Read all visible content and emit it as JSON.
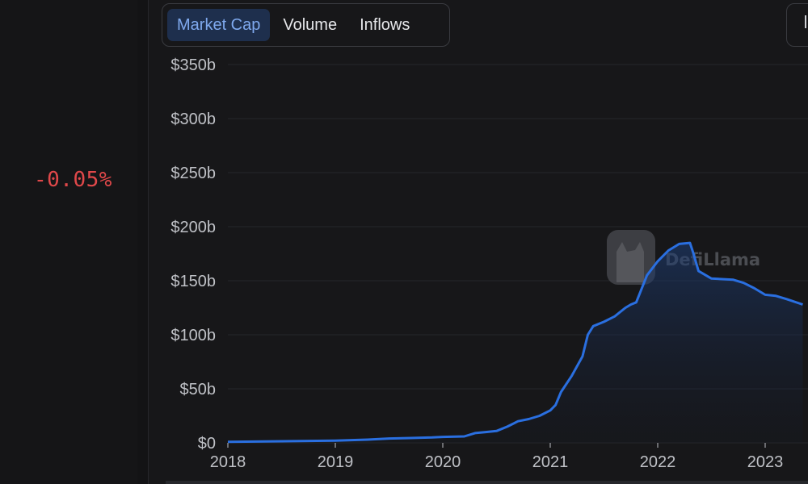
{
  "stats": {
    "change_value": "-0.05%"
  },
  "tabs": [
    {
      "label": "Market Cap",
      "active": true
    },
    {
      "label": "Volume",
      "active": false
    },
    {
      "label": "Inflows",
      "active": false
    }
  ],
  "watermark": {
    "text": "DefiLlama"
  },
  "colors": {
    "line": "#2a6fe0",
    "negative": "#e0484a",
    "active_tab_bg": "#1e2f4d",
    "active_tab_text": "#7fa9ee"
  },
  "chart_data": {
    "type": "area",
    "ylim": [
      0,
      350
    ],
    "y_ticks": [
      0,
      50,
      100,
      150,
      200,
      250,
      300,
      350
    ],
    "y_tick_labels": [
      "$0",
      "$50b",
      "$100b",
      "$150b",
      "$200b",
      "$250b",
      "$300b",
      "$350b"
    ],
    "x_ticks": [
      2018,
      2019,
      2020,
      2021,
      2022,
      2023
    ],
    "x_tick_labels": [
      "2018",
      "2019",
      "2020",
      "2021",
      "2022",
      "2023"
    ],
    "xlim": [
      2018,
      2023.35
    ],
    "grid": true,
    "series": [
      {
        "x": [
          2018.0,
          2018.5,
          2019.0,
          2019.3,
          2019.5,
          2019.7,
          2019.9,
          2020.0,
          2020.2,
          2020.3,
          2020.4,
          2020.5,
          2020.6,
          2020.7,
          2020.8,
          2020.9,
          2021.0,
          2021.05,
          2021.1,
          2021.2,
          2021.3,
          2021.35,
          2021.4,
          2021.5,
          2021.6,
          2021.7,
          2021.75,
          2021.8,
          2021.9,
          2022.0,
          2022.1,
          2022.2,
          2022.3,
          2022.33,
          2022.38,
          2022.5,
          2022.7,
          2022.8,
          2022.9,
          2023.0,
          2023.1,
          2023.2,
          2023.35
        ],
        "y": [
          1,
          1.5,
          2,
          3,
          4,
          4.5,
          5,
          5.5,
          6,
          9,
          10,
          11,
          15,
          20,
          22,
          25,
          30,
          35,
          47,
          62,
          80,
          100,
          108,
          112,
          117,
          125,
          128,
          130,
          155,
          168,
          178,
          184,
          185,
          176,
          159,
          152,
          151,
          148,
          143,
          137,
          136,
          133,
          128
        ]
      }
    ]
  }
}
